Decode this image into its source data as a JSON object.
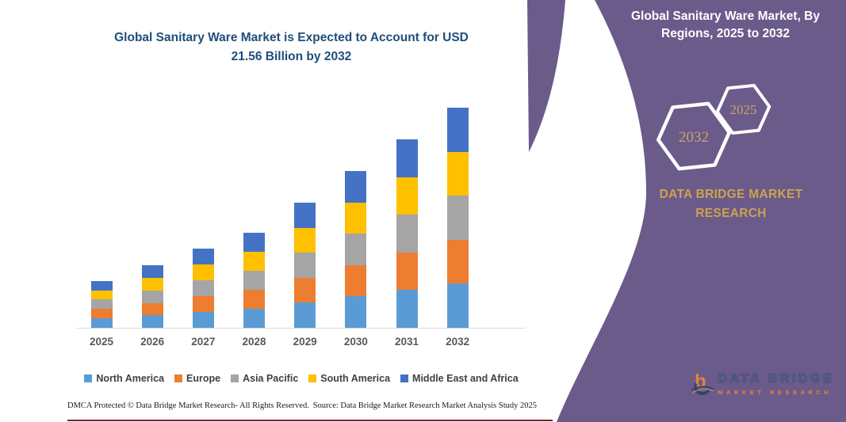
{
  "left": {
    "title": "Global Sanitary Ware Market is Expected to Account for USD 21.56 Billion by 2032",
    "footer_left": "DMCA Protected © Data Bridge Market Research-  All Rights Reserved.",
    "footer_source": "Source: Data Bridge Market Research  Market Analysis Study 2025"
  },
  "chart_data": {
    "type": "bar",
    "stacked": true,
    "title": "Global Sanitary Ware Market is Expected to Account for USD 21.56 Billion by 2032",
    "unit": "USD Billion",
    "categories": [
      "2025",
      "2026",
      "2027",
      "2028",
      "2029",
      "2030",
      "2031",
      "2032"
    ],
    "series": [
      {
        "name": "North America",
        "color": "#5B9BD5",
        "values": [
          0.92,
          1.22,
          1.55,
          1.86,
          2.45,
          3.07,
          3.69,
          4.31
        ]
      },
      {
        "name": "Europe",
        "color": "#ED7D31",
        "values": [
          0.92,
          1.22,
          1.55,
          1.86,
          2.45,
          3.07,
          3.69,
          4.31
        ]
      },
      {
        "name": "Asia Pacific",
        "color": "#A5A5A5",
        "values": [
          0.92,
          1.22,
          1.55,
          1.86,
          2.45,
          3.07,
          3.69,
          4.31
        ]
      },
      {
        "name": "South America",
        "color": "#FFC000",
        "values": [
          0.92,
          1.22,
          1.55,
          1.86,
          2.45,
          3.07,
          3.69,
          4.31
        ]
      },
      {
        "name": "Middle East and Africa",
        "color": "#4472C4",
        "values": [
          0.92,
          1.22,
          1.55,
          1.86,
          2.45,
          3.07,
          3.69,
          4.31
        ]
      }
    ],
    "totals": [
      4.62,
      6.12,
      7.75,
      9.3,
      12.26,
      15.36,
      18.44,
      21.56
    ],
    "ylim": [
      0,
      22
    ],
    "grid": false,
    "legend_position": "bottom",
    "xlabel": "",
    "ylabel": ""
  },
  "panel": {
    "title": "Global Sanitary Ware Market, By Regions, 2025 to 2032",
    "hexagon_back_year": "2032",
    "hexagon_front_year": "2025",
    "brand": "DATA BRIDGE MARKET RESEARCH",
    "logo_line1": "DATA BRIDGE",
    "logo_line2": "MARKET RESEARCH",
    "colors": {
      "panel_purple": "#6a5b8b",
      "gold": "#cfa24f",
      "hex_year_gold": "#c9a466",
      "title_navy": "#1f4e79",
      "axis_label_gray": "#595959",
      "bottom_rule_maroon": "#722337"
    }
  }
}
